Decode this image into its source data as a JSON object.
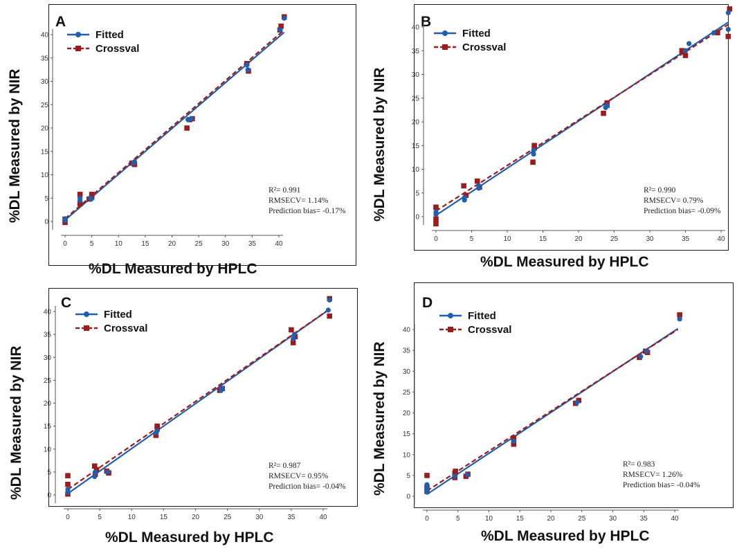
{
  "colors": {
    "fitted": "#1f5fae",
    "crossval": "#9b1c1c",
    "frame": "#1a1a1a"
  },
  "chart_data": [
    {
      "type": "scatter",
      "panel": "A",
      "xlabel": "%DL Measured by HPLC",
      "ylabel": "%DL Measured by NIR",
      "xlim": [
        0,
        42
      ],
      "ylim": [
        0,
        44
      ],
      "xticks": [
        0,
        5,
        10,
        15,
        20,
        25,
        30,
        35,
        40
      ],
      "yticks": [
        0,
        5,
        10,
        15,
        20,
        25,
        30,
        35,
        40
      ],
      "legend": [
        "Fitted",
        "Crossval"
      ],
      "stats": {
        "r2_label": "R²= 0.991",
        "rmsecv_label": "RMSECV= 1.14%",
        "bias_label": "Prediction bias= -0.17%"
      },
      "series": [
        {
          "name": "Fitted",
          "line": [
            [
              0,
              0.3
            ],
            [
              41,
              40.5
            ]
          ],
          "points": [
            [
              0,
              0.2
            ],
            [
              0,
              0.6
            ],
            [
              2.8,
              4.5
            ],
            [
              2.8,
              5.0
            ],
            [
              4.7,
              5.0
            ],
            [
              4.9,
              4.8
            ],
            [
              12.8,
              12.5
            ],
            [
              13,
              12.8
            ],
            [
              23,
              21.8
            ],
            [
              23.6,
              22
            ],
            [
              34,
              33.5
            ],
            [
              34.2,
              32.5
            ],
            [
              40.2,
              41
            ],
            [
              41,
              43.5
            ]
          ]
        },
        {
          "name": "Crossval",
          "line": [
            [
              0,
              0.6
            ],
            [
              41,
              41
            ]
          ],
          "points": [
            [
              0,
              -0.2
            ],
            [
              0,
              0.5
            ],
            [
              2.8,
              3.8
            ],
            [
              2.8,
              5.8
            ],
            [
              4.5,
              4.8
            ],
            [
              5,
              5.8
            ],
            [
              5,
              5.2
            ],
            [
              12.5,
              12.5
            ],
            [
              13,
              12.2
            ],
            [
              22.8,
              20
            ],
            [
              23.3,
              21.8
            ],
            [
              23.8,
              22
            ],
            [
              34,
              33.8
            ],
            [
              34.3,
              32.2
            ],
            [
              40.2,
              41
            ],
            [
              40.4,
              41.8
            ],
            [
              41,
              43.8
            ]
          ]
        }
      ]
    },
    {
      "type": "scatter",
      "panel": "B",
      "xlabel": "%DL Measured by HPLC",
      "ylabel": "%DL Measured by NIR",
      "xlim": [
        0,
        42
      ],
      "ylim": [
        0,
        44
      ],
      "xticks": [
        0,
        5,
        10,
        15,
        20,
        25,
        30,
        35,
        40
      ],
      "yticks": [
        0,
        5,
        10,
        15,
        20,
        25,
        30,
        35,
        40
      ],
      "legend": [
        "Fitted",
        "Crossval"
      ],
      "stats": {
        "r2_label": "R²= 0.990",
        "rmsecv_label": "RMSECV= 0.79%",
        "bias_label": "Prediction bias= -0.09%"
      },
      "series": [
        {
          "name": "Fitted",
          "line": [
            [
              0,
              0.3
            ],
            [
              41,
              41
            ]
          ],
          "points": [
            [
              0,
              0.5
            ],
            [
              0,
              1
            ],
            [
              4,
              3.5
            ],
            [
              4,
              4
            ],
            [
              6,
              6
            ],
            [
              6,
              6.5
            ],
            [
              13.7,
              13.2
            ],
            [
              13.7,
              14
            ],
            [
              23.8,
              23
            ],
            [
              24,
              23.5
            ],
            [
              35,
              35
            ],
            [
              35.5,
              36.5
            ],
            [
              39,
              38.8
            ],
            [
              41,
              39.5
            ],
            [
              41,
              43
            ]
          ]
        },
        {
          "name": "Crossval",
          "line": [
            [
              0,
              1.2
            ],
            [
              41,
              40.5
            ]
          ],
          "points": [
            [
              0,
              -1.5
            ],
            [
              0,
              -0.5
            ],
            [
              0,
              2
            ],
            [
              3.9,
              6.5
            ],
            [
              4.2,
              4.5
            ],
            [
              5.8,
              7.5
            ],
            [
              6.1,
              6.2
            ],
            [
              13.6,
              11.5
            ],
            [
              13.8,
              14.5
            ],
            [
              13.8,
              15
            ],
            [
              23.5,
              21.8
            ],
            [
              24,
              23.5
            ],
            [
              24,
              24
            ],
            [
              34.5,
              35
            ],
            [
              35,
              34
            ],
            [
              39.5,
              38.8
            ],
            [
              41,
              38
            ],
            [
              41.2,
              43.8
            ]
          ]
        }
      ]
    },
    {
      "type": "scatter",
      "panel": "C",
      "xlabel": "%DL Measured by HPLC",
      "ylabel": "%DL Measured by NIR",
      "xlim": [
        -1,
        44
      ],
      "ylim": [
        -2,
        44
      ],
      "xticks": [
        0,
        5,
        10,
        15,
        20,
        25,
        30,
        35,
        40
      ],
      "yticks": [
        0,
        5,
        10,
        15,
        20,
        25,
        30,
        35,
        40
      ],
      "legend": [
        "Fitted",
        "Crossval"
      ],
      "stats": {
        "r2_label": "R²= 0.987",
        "rmsecv_label": "RMSECV= 0.95%",
        "bias_label": "Prediction bias= -0.04%"
      },
      "series": [
        {
          "name": "Fitted",
          "line": [
            [
              0,
              0.3
            ],
            [
              41,
              40.5
            ]
          ],
          "points": [
            [
              0,
              0.5
            ],
            [
              0,
              1.2
            ],
            [
              4.2,
              4
            ],
            [
              4.3,
              5
            ],
            [
              6.2,
              5
            ],
            [
              13.8,
              13.5
            ],
            [
              14,
              14
            ],
            [
              24,
              22.8
            ],
            [
              24.2,
              23.2
            ],
            [
              35.3,
              34
            ],
            [
              35.5,
              35
            ],
            [
              40.8,
              40.3
            ],
            [
              41,
              42.5
            ]
          ]
        },
        {
          "name": "Crossval",
          "line": [
            [
              0,
              1.2
            ],
            [
              41,
              40.5
            ]
          ],
          "points": [
            [
              0,
              0.2
            ],
            [
              0,
              2.3
            ],
            [
              0,
              4.2
            ],
            [
              4.2,
              6.3
            ],
            [
              4.3,
              4.5
            ],
            [
              4.5,
              5.5
            ],
            [
              6.1,
              5.2
            ],
            [
              6.4,
              4.8
            ],
            [
              13.8,
              13
            ],
            [
              14,
              14.5
            ],
            [
              14,
              15
            ],
            [
              23.8,
              22.8
            ],
            [
              24.2,
              23.2
            ],
            [
              35,
              36
            ],
            [
              35.3,
              33.2
            ],
            [
              35.6,
              34.5
            ],
            [
              41,
              39
            ],
            [
              41,
              42.8
            ]
          ]
        }
      ]
    },
    {
      "type": "scatter",
      "panel": "D",
      "xlabel": "%DL Measured by HPLC",
      "ylabel": "%DL Measured by NIR",
      "xlim": [
        -2,
        50
      ],
      "ylim": [
        -2,
        46
      ],
      "xticks": [
        0,
        5,
        10,
        15,
        20,
        25,
        30,
        35,
        40
      ],
      "yticks": [
        0,
        5,
        10,
        15,
        20,
        25,
        30,
        35,
        40
      ],
      "legend": [
        "Fitted",
        "Crossval"
      ],
      "stats": {
        "r2_label": "R²= 0.983",
        "rmsecv_label": "RMSECV= 1.26%",
        "bias_label": "Prediction bias= -0.04%"
      },
      "series": [
        {
          "name": "Fitted",
          "line": [
            [
              0,
              0.5
            ],
            [
              40.5,
              40.2
            ]
          ],
          "points": [
            [
              0,
              1
            ],
            [
              0,
              1.8
            ],
            [
              0,
              2.8
            ],
            [
              4.5,
              4.8
            ],
            [
              6.5,
              5.2
            ],
            [
              14,
              13.2
            ],
            [
              24.2,
              22.5
            ],
            [
              34.5,
              33.5
            ],
            [
              35.5,
              34.8
            ],
            [
              40.8,
              42.5
            ]
          ]
        },
        {
          "name": "Crossval",
          "line": [
            [
              0,
              1.3
            ],
            [
              40.5,
              40
            ]
          ],
          "points": [
            [
              0,
              1.2
            ],
            [
              0,
              2.2
            ],
            [
              0,
              5
            ],
            [
              4.5,
              4.5
            ],
            [
              4.5,
              5.5
            ],
            [
              4.6,
              6
            ],
            [
              6.3,
              4.8
            ],
            [
              6.6,
              5.3
            ],
            [
              14,
              12.5
            ],
            [
              14,
              13.5
            ],
            [
              14,
              14
            ],
            [
              24,
              22.3
            ],
            [
              24.5,
              23
            ],
            [
              34.3,
              33.3
            ],
            [
              35.3,
              34.8
            ],
            [
              35.6,
              34.5
            ],
            [
              40.8,
              43.5
            ]
          ]
        }
      ]
    }
  ]
}
